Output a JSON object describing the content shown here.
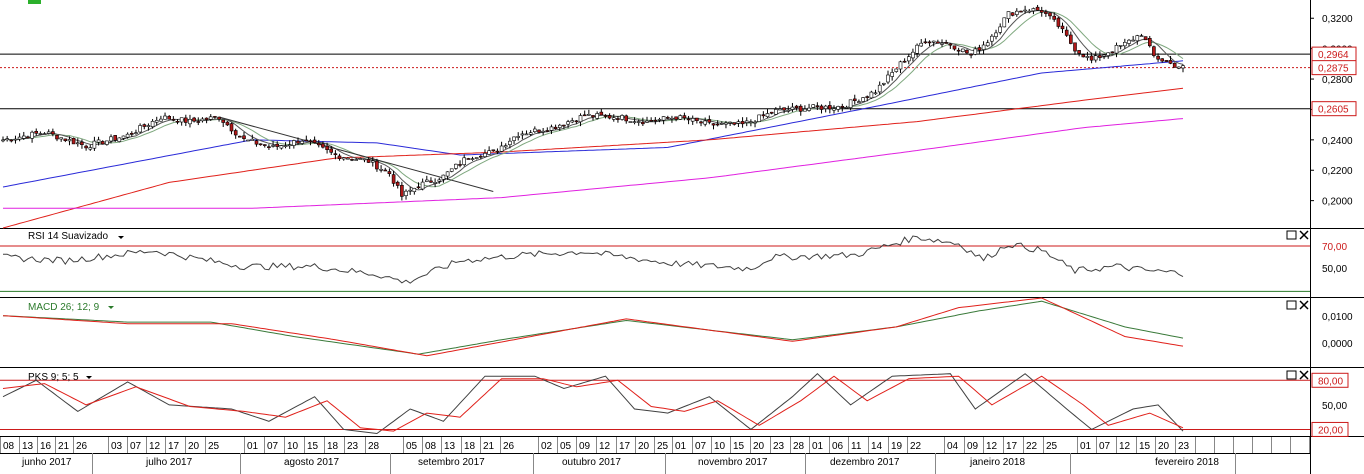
{
  "colors": {
    "price_up": "#ffffff",
    "price_down": "#b01818",
    "sma_short": "#7fa87f",
    "sma_mid": "#2a2ad8",
    "sma_long": "#e0201a",
    "sma_xlong": "#e020e0",
    "oscillator": "#404040",
    "signal": "#e0201a",
    "macd": "#3a7a3a",
    "level": "#cc1a1a",
    "label_red": "#cc1a1a",
    "label_green": "#2a7a2a",
    "indicator_marker": "#2bb02b"
  },
  "toolbar": {
    "indicator_icon": "green-square-icon"
  },
  "price_panel": {
    "y_ticks": [
      "0,3200",
      "0,3000",
      "0,2800",
      "0,2600",
      "0,2400",
      "0,2200",
      "0,2000"
    ],
    "y_tick_values": [
      0.32,
      0.3,
      0.28,
      0.26,
      0.24,
      0.22,
      0.2
    ],
    "ylim": [
      0.182,
      0.332
    ],
    "horizontal_lines": [
      0.2964,
      0.2875,
      0.2605
    ],
    "labels": [
      {
        "text": "0,2964",
        "value": 0.2964
      },
      {
        "text": "0,2875",
        "value": 0.2875
      },
      {
        "text": "0,2605",
        "value": 0.2605
      }
    ]
  },
  "rsi_panel": {
    "title": "RSI 14 Suavizado",
    "levels": [
      70,
      30
    ],
    "level_labels": [
      "70,00"
    ],
    "y_tick": "50,00",
    "ylim": [
      25,
      85
    ]
  },
  "macd_panel": {
    "title": "MACD 26; 12; 9",
    "y_ticks": [
      "0,0100",
      "0,0000"
    ],
    "y_tick_values": [
      0.01,
      0.0
    ],
    "ylim": [
      -0.0075,
      0.014
    ]
  },
  "pks_panel": {
    "title": "PKS 9; 5; 5",
    "levels": [
      80,
      20
    ],
    "level_labels": [
      "80,00",
      "20,00"
    ],
    "y_tick": "50,00",
    "ylim": [
      12,
      95
    ]
  },
  "x_axis": {
    "day_labels": [
      "08",
      "13",
      "16",
      "21",
      "26",
      "03",
      "07",
      "12",
      "17",
      "20",
      "25",
      "01",
      "07",
      "10",
      "15",
      "18",
      "23",
      "28",
      "05",
      "08",
      "13",
      "18",
      "21",
      "26",
      "02",
      "05",
      "09",
      "12",
      "17",
      "20",
      "25",
      "01",
      "07",
      "10",
      "15",
      "20",
      "23",
      "28",
      "01",
      "06",
      "11",
      "14",
      "19",
      "22",
      "04",
      "09",
      "12",
      "17",
      "22",
      "25",
      "01",
      "07",
      "12",
      "15",
      "20",
      "23"
    ],
    "months": [
      "junho 2017",
      "julho 2017",
      "agosto 2017",
      "setembro 2017",
      "outubro 2017",
      "novembro 2017",
      "dezembro 2017",
      "janeiro 2018",
      "fevereiro 2018"
    ]
  },
  "chart_data": [
    {
      "type": "candlestick",
      "title": "",
      "ylim": [
        0.182,
        0.332
      ],
      "y_ticks": [
        0.32,
        0.3,
        0.28,
        0.26,
        0.24,
        0.22,
        0.2
      ],
      "key_points": [
        {
          "i": 0,
          "v": 0.24
        },
        {
          "i": 10,
          "v": 0.245
        },
        {
          "i": 20,
          "v": 0.236
        },
        {
          "i": 30,
          "v": 0.243
        },
        {
          "i": 38,
          "v": 0.255
        },
        {
          "i": 45,
          "v": 0.252
        },
        {
          "i": 52,
          "v": 0.255
        },
        {
          "i": 58,
          "v": 0.24
        },
        {
          "i": 65,
          "v": 0.235
        },
        {
          "i": 72,
          "v": 0.24
        },
        {
          "i": 80,
          "v": 0.23
        },
        {
          "i": 88,
          "v": 0.226
        },
        {
          "i": 93,
          "v": 0.218
        },
        {
          "i": 96,
          "v": 0.203
        },
        {
          "i": 100,
          "v": 0.21
        },
        {
          "i": 106,
          "v": 0.216
        },
        {
          "i": 112,
          "v": 0.229
        },
        {
          "i": 118,
          "v": 0.232
        },
        {
          "i": 124,
          "v": 0.244
        },
        {
          "i": 132,
          "v": 0.248
        },
        {
          "i": 140,
          "v": 0.256
        },
        {
          "i": 148,
          "v": 0.255
        },
        {
          "i": 155,
          "v": 0.252
        },
        {
          "i": 162,
          "v": 0.255
        },
        {
          "i": 170,
          "v": 0.25
        },
        {
          "i": 178,
          "v": 0.25
        },
        {
          "i": 186,
          "v": 0.259
        },
        {
          "i": 194,
          "v": 0.261
        },
        {
          "i": 202,
          "v": 0.262
        },
        {
          "i": 210,
          "v": 0.272
        },
        {
          "i": 216,
          "v": 0.29
        },
        {
          "i": 222,
          "v": 0.306
        },
        {
          "i": 228,
          "v": 0.303
        },
        {
          "i": 233,
          "v": 0.296
        },
        {
          "i": 237,
          "v": 0.305
        },
        {
          "i": 242,
          "v": 0.323
        },
        {
          "i": 246,
          "v": 0.326
        },
        {
          "i": 250,
          "v": 0.325
        },
        {
          "i": 254,
          "v": 0.315
        },
        {
          "i": 258,
          "v": 0.3
        },
        {
          "i": 262,
          "v": 0.292
        },
        {
          "i": 266,
          "v": 0.298
        },
        {
          "i": 270,
          "v": 0.303
        },
        {
          "i": 274,
          "v": 0.31
        },
        {
          "i": 277,
          "v": 0.295
        },
        {
          "i": 281,
          "v": 0.29
        },
        {
          "i": 284,
          "v": 0.2875
        }
      ],
      "trendline": [
        {
          "i": 52,
          "v": 0.255
        },
        {
          "i": 118,
          "v": 0.206
        }
      ],
      "moving_averages": [
        {
          "color_key": "sma_mid",
          "points": [
            {
              "i": 0,
              "v": 0.209
            },
            {
              "i": 60,
              "v": 0.24
            },
            {
              "i": 90,
              "v": 0.238
            },
            {
              "i": 110,
              "v": 0.23
            },
            {
              "i": 160,
              "v": 0.235
            },
            {
              "i": 210,
              "v": 0.262
            },
            {
              "i": 250,
              "v": 0.284
            },
            {
              "i": 284,
              "v": 0.292
            }
          ]
        },
        {
          "color_key": "sma_long",
          "points": [
            {
              "i": 0,
              "v": 0.182
            },
            {
              "i": 40,
              "v": 0.212
            },
            {
              "i": 80,
              "v": 0.228
            },
            {
              "i": 120,
              "v": 0.232
            },
            {
              "i": 170,
              "v": 0.24
            },
            {
              "i": 220,
              "v": 0.252
            },
            {
              "i": 260,
              "v": 0.266
            },
            {
              "i": 284,
              "v": 0.274
            }
          ]
        },
        {
          "color_key": "sma_xlong",
          "points": [
            {
              "i": 0,
              "v": 0.195
            },
            {
              "i": 60,
              "v": 0.195
            },
            {
              "i": 120,
              "v": 0.202
            },
            {
              "i": 170,
              "v": 0.215
            },
            {
              "i": 220,
              "v": 0.233
            },
            {
              "i": 260,
              "v": 0.248
            },
            {
              "i": 284,
              "v": 0.254
            }
          ]
        }
      ]
    },
    {
      "type": "line",
      "title": "RSI 14 Suavizado",
      "ylim": [
        25,
        85
      ],
      "series": [
        {
          "color_key": "oscillator",
          "points": [
            {
              "i": 0,
              "v": 60
            },
            {
              "i": 15,
              "v": 57
            },
            {
              "i": 36,
              "v": 66
            },
            {
              "i": 48,
              "v": 58
            },
            {
              "i": 58,
              "v": 52
            },
            {
              "i": 75,
              "v": 52
            },
            {
              "i": 90,
              "v": 45
            },
            {
              "i": 97,
              "v": 38
            },
            {
              "i": 110,
              "v": 57
            },
            {
              "i": 125,
              "v": 62
            },
            {
              "i": 140,
              "v": 65
            },
            {
              "i": 160,
              "v": 55
            },
            {
              "i": 180,
              "v": 50
            },
            {
              "i": 185,
              "v": 60
            },
            {
              "i": 205,
              "v": 62
            },
            {
              "i": 220,
              "v": 78
            },
            {
              "i": 230,
              "v": 72
            },
            {
              "i": 236,
              "v": 58
            },
            {
              "i": 242,
              "v": 72
            },
            {
              "i": 250,
              "v": 66
            },
            {
              "i": 258,
              "v": 48
            },
            {
              "i": 268,
              "v": 52
            },
            {
              "i": 276,
              "v": 48
            },
            {
              "i": 284,
              "v": 46
            }
          ]
        }
      ]
    },
    {
      "type": "line",
      "title": "MACD 26; 12; 9",
      "ylim": [
        -0.0075,
        0.014
      ],
      "series": [
        {
          "color_key": "macd",
          "points": [
            {
              "i": 0,
              "v": 0.0085
            },
            {
              "i": 30,
              "v": 0.0065
            },
            {
              "i": 50,
              "v": 0.0065
            },
            {
              "i": 70,
              "v": 0.002
            },
            {
              "i": 100,
              "v": -0.0035
            },
            {
              "i": 120,
              "v": 0.001
            },
            {
              "i": 150,
              "v": 0.007
            },
            {
              "i": 190,
              "v": 0.001
            },
            {
              "i": 215,
              "v": 0.005
            },
            {
              "i": 235,
              "v": 0.01
            },
            {
              "i": 250,
              "v": 0.013
            },
            {
              "i": 270,
              "v": 0.005
            },
            {
              "i": 284,
              "v": 0.0015
            }
          ]
        },
        {
          "color_key": "signal",
          "points": [
            {
              "i": 0,
              "v": 0.0085
            },
            {
              "i": 30,
              "v": 0.006
            },
            {
              "i": 55,
              "v": 0.006
            },
            {
              "i": 80,
              "v": 0.001
            },
            {
              "i": 102,
              "v": -0.004
            },
            {
              "i": 125,
              "v": 0.0015
            },
            {
              "i": 150,
              "v": 0.0075
            },
            {
              "i": 190,
              "v": 0.0005
            },
            {
              "i": 215,
              "v": 0.005
            },
            {
              "i": 230,
              "v": 0.011
            },
            {
              "i": 250,
              "v": 0.014
            },
            {
              "i": 270,
              "v": 0.002
            },
            {
              "i": 284,
              "v": -0.001
            }
          ]
        }
      ]
    },
    {
      "type": "line",
      "title": "PKS 9; 5; 5",
      "ylim": [
        12,
        95
      ],
      "series": [
        {
          "color_key": "oscillator",
          "points": [
            {
              "i": 0,
              "v": 60
            },
            {
              "i": 8,
              "v": 80
            },
            {
              "i": 18,
              "v": 42
            },
            {
              "i": 30,
              "v": 78
            },
            {
              "i": 40,
              "v": 50
            },
            {
              "i": 55,
              "v": 45
            },
            {
              "i": 64,
              "v": 30
            },
            {
              "i": 75,
              "v": 60
            },
            {
              "i": 82,
              "v": 20
            },
            {
              "i": 90,
              "v": 15
            },
            {
              "i": 98,
              "v": 45
            },
            {
              "i": 106,
              "v": 30
            },
            {
              "i": 116,
              "v": 85
            },
            {
              "i": 128,
              "v": 85
            },
            {
              "i": 135,
              "v": 70
            },
            {
              "i": 145,
              "v": 85
            },
            {
              "i": 152,
              "v": 45
            },
            {
              "i": 160,
              "v": 40
            },
            {
              "i": 170,
              "v": 60
            },
            {
              "i": 180,
              "v": 20
            },
            {
              "i": 190,
              "v": 60
            },
            {
              "i": 196,
              "v": 88
            },
            {
              "i": 204,
              "v": 50
            },
            {
              "i": 214,
              "v": 85
            },
            {
              "i": 228,
              "v": 88
            },
            {
              "i": 234,
              "v": 45
            },
            {
              "i": 246,
              "v": 88
            },
            {
              "i": 256,
              "v": 45
            },
            {
              "i": 262,
              "v": 20
            },
            {
              "i": 272,
              "v": 45
            },
            {
              "i": 278,
              "v": 50
            },
            {
              "i": 284,
              "v": 18
            }
          ]
        },
        {
          "color_key": "signal",
          "points": [
            {
              "i": 0,
              "v": 70
            },
            {
              "i": 10,
              "v": 76
            },
            {
              "i": 20,
              "v": 50
            },
            {
              "i": 32,
              "v": 72
            },
            {
              "i": 45,
              "v": 48
            },
            {
              "i": 58,
              "v": 42
            },
            {
              "i": 68,
              "v": 35
            },
            {
              "i": 78,
              "v": 55
            },
            {
              "i": 86,
              "v": 22
            },
            {
              "i": 94,
              "v": 18
            },
            {
              "i": 102,
              "v": 40
            },
            {
              "i": 110,
              "v": 35
            },
            {
              "i": 120,
              "v": 82
            },
            {
              "i": 130,
              "v": 82
            },
            {
              "i": 138,
              "v": 72
            },
            {
              "i": 148,
              "v": 80
            },
            {
              "i": 156,
              "v": 48
            },
            {
              "i": 164,
              "v": 42
            },
            {
              "i": 172,
              "v": 55
            },
            {
              "i": 182,
              "v": 25
            },
            {
              "i": 192,
              "v": 55
            },
            {
              "i": 200,
              "v": 85
            },
            {
              "i": 208,
              "v": 55
            },
            {
              "i": 218,
              "v": 82
            },
            {
              "i": 230,
              "v": 85
            },
            {
              "i": 238,
              "v": 50
            },
            {
              "i": 250,
              "v": 85
            },
            {
              "i": 260,
              "v": 50
            },
            {
              "i": 266,
              "v": 25
            },
            {
              "i": 276,
              "v": 40
            },
            {
              "i": 284,
              "v": 22
            }
          ]
        }
      ]
    }
  ]
}
